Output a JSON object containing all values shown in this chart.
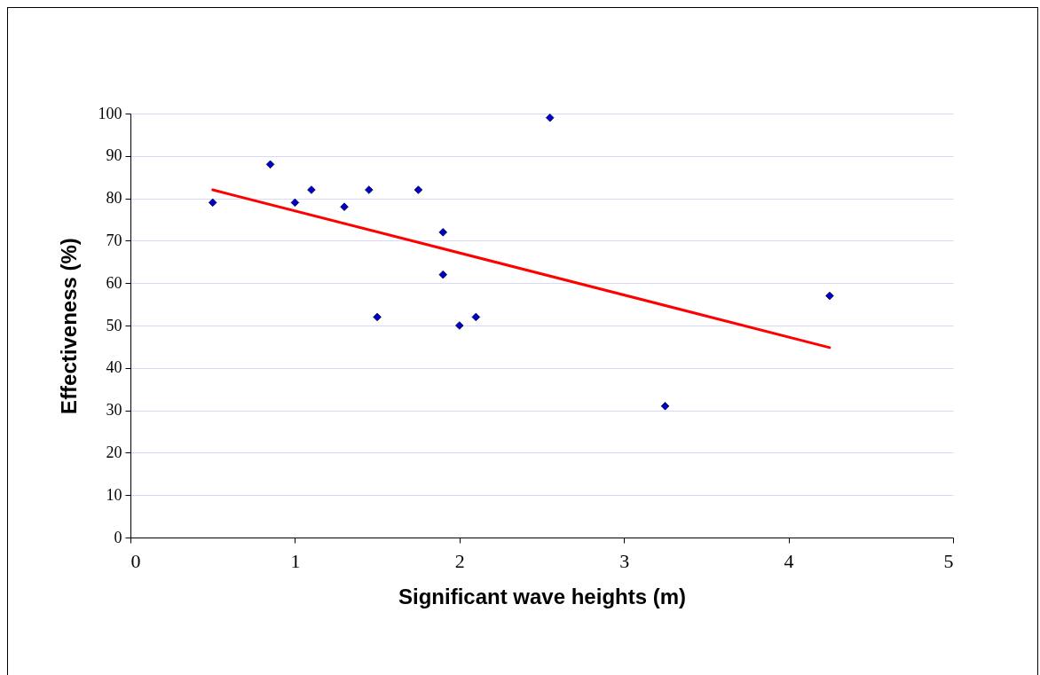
{
  "chart_data": {
    "type": "scatter",
    "xlabel": "Significant wave heights (m)",
    "ylabel": "Effectiveness (%)",
    "x": [
      0.5,
      0.85,
      1.0,
      1.1,
      1.3,
      1.45,
      1.5,
      1.75,
      1.9,
      1.9,
      2.0,
      2.1,
      2.55,
      3.25,
      4.25
    ],
    "series": [
      {
        "color": "#0000cc",
        "marker": "diamond",
        "values": [
          79,
          88,
          79,
          82,
          78,
          82,
          52,
          82,
          72,
          62,
          50,
          52,
          99,
          31,
          57
        ]
      },
      {
        "type": "line",
        "color": "#ff0000",
        "x": [
          0.5,
          4.25
        ],
        "values": [
          82,
          44.8
        ]
      }
    ],
    "xlim": [
      0,
      5
    ],
    "ylim": [
      0,
      100
    ],
    "xticks": [
      0,
      1,
      2,
      3,
      4,
      5
    ],
    "yticks": [
      0,
      10,
      20,
      30,
      40,
      50,
      60,
      70,
      80,
      90,
      100
    ],
    "grid": "y"
  }
}
